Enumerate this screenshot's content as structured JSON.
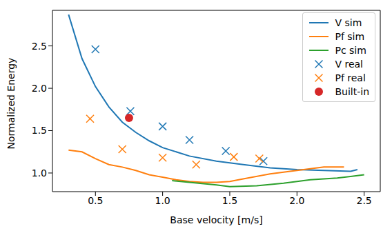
{
  "chart_data": {
    "type": "line",
    "xlabel": "Base velocity [m/s]",
    "ylabel": "Normalized Energy",
    "xlim": [
      0.18,
      2.62
    ],
    "ylim": [
      0.78,
      2.92
    ],
    "xticks": [
      0.5,
      {
        "value": 1,
        "label": "1.0"
      },
      1.5,
      {
        "value": 2,
        "label": "2.0"
      },
      2.5
    ],
    "yticks": [
      {
        "value": 1,
        "label": "1.0"
      },
      1.5,
      {
        "value": 2,
        "label": "2.0"
      },
      2.5
    ],
    "grid": false,
    "legend": "upper right",
    "series": [
      {
        "name": "V sim",
        "type": "line",
        "color": "#1f77b4",
        "x": [
          0.3,
          0.4,
          0.5,
          0.6,
          0.7,
          0.8,
          0.9,
          1.0,
          1.2,
          1.4,
          1.6,
          1.8,
          2.0,
          2.2,
          2.4,
          2.45
        ],
        "values": [
          2.87,
          2.35,
          2.02,
          1.78,
          1.6,
          1.48,
          1.38,
          1.3,
          1.2,
          1.14,
          1.1,
          1.06,
          1.04,
          1.03,
          1.02,
          1.04
        ]
      },
      {
        "name": "Pf sim",
        "type": "line",
        "color": "#ff7f0e",
        "x": [
          0.3,
          0.4,
          0.5,
          0.6,
          0.7,
          0.8,
          0.9,
          1.0,
          1.1,
          1.2,
          1.3,
          1.4,
          1.5,
          1.6,
          1.8,
          2.0,
          2.2,
          2.35
        ],
        "values": [
          1.27,
          1.25,
          1.17,
          1.1,
          1.07,
          1.03,
          0.98,
          0.95,
          0.92,
          0.9,
          0.89,
          0.89,
          0.9,
          0.93,
          0.99,
          1.03,
          1.07,
          1.07
        ]
      },
      {
        "name": "Pc sim",
        "type": "line",
        "color": "#2ca02c",
        "x": [
          1.07,
          1.2,
          1.4,
          1.5,
          1.7,
          1.9,
          2.1,
          2.3,
          2.45,
          2.5
        ],
        "values": [
          0.91,
          0.89,
          0.86,
          0.84,
          0.85,
          0.88,
          0.92,
          0.94,
          0.97,
          0.98
        ]
      },
      {
        "name": "V real",
        "type": "scatter",
        "marker": "x",
        "color": "#1f77b4",
        "x": [
          0.5,
          0.76,
          1.0,
          1.2,
          1.47,
          1.75
        ],
        "values": [
          2.46,
          1.73,
          1.55,
          1.39,
          1.26,
          1.14
        ]
      },
      {
        "name": "Pf real",
        "type": "scatter",
        "marker": "x",
        "color": "#ff7f0e",
        "x": [
          0.46,
          0.7,
          1.0,
          1.25,
          1.53,
          1.72
        ],
        "values": [
          1.64,
          1.28,
          1.18,
          1.1,
          1.19,
          1.17
        ]
      },
      {
        "name": "Built-in",
        "type": "scatter",
        "marker": "o",
        "color": "#d62728",
        "x": [
          0.75
        ],
        "values": [
          1.65
        ]
      }
    ]
  }
}
